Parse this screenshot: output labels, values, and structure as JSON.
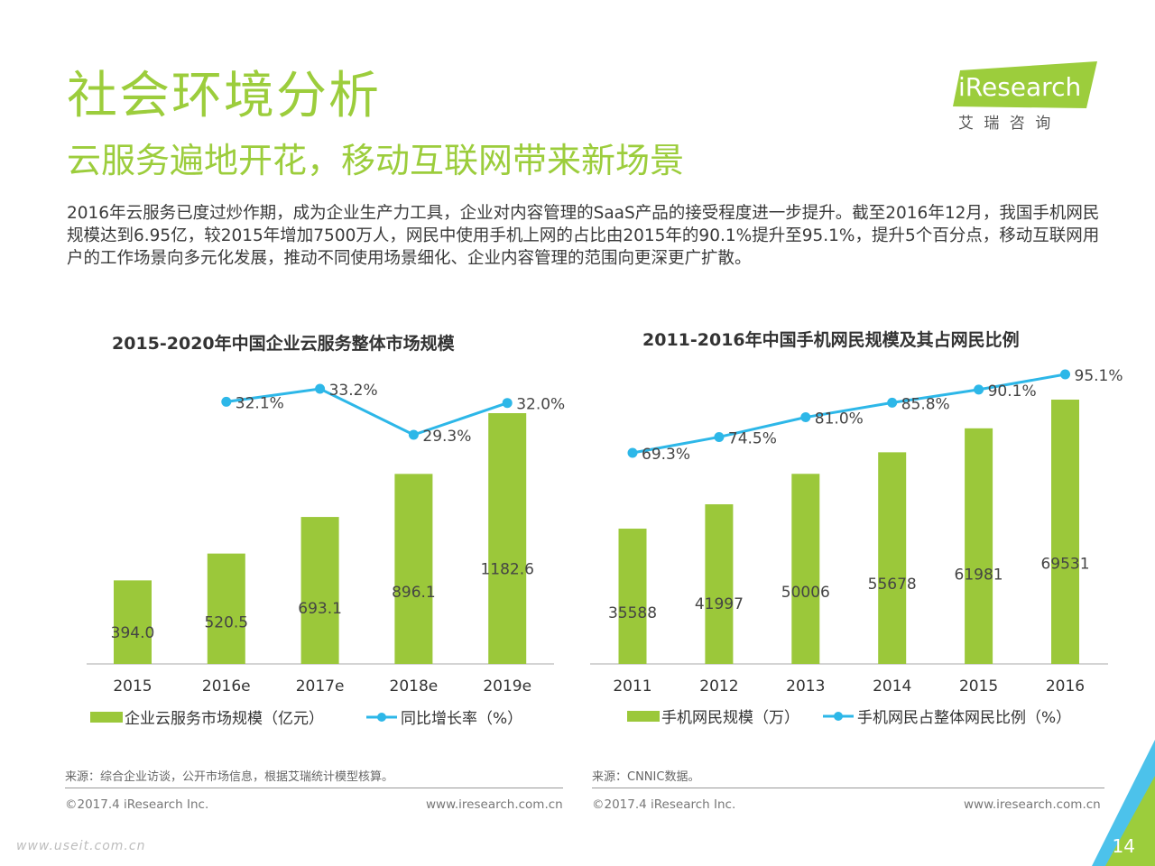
{
  "header": {
    "title": "社会环境分析",
    "subtitle": "云服务遍地开花，移动互联网带来新场景",
    "intro": "2016年云服务已度过炒作期，成为企业生产力工具，企业对内容管理的SaaS产品的接受程度进一步提升。截至2016年12月，我国手机网民规模达到6.95亿，较2015年增加7500万人，网民中使用手机上网的占比由2015年的90.1%提升至95.1%，提升5个百分点，移动互联网用户的工作场景向多元化发展，推动不同使用场景细化、企业内容管理的范围向更深更广扩散。"
  },
  "logo": {
    "brand": "iResearch",
    "tagline": "艾 瑞 咨 询"
  },
  "colors": {
    "green": "#9ccd3c",
    "bar": "#9bc83a",
    "line": "#2db7e8"
  },
  "chart_data": [
    {
      "type": "bar",
      "title": "2015-2020年中国企业云服务整体市场规模",
      "categories": [
        "2015",
        "2016e",
        "2017e",
        "2018e",
        "2019e"
      ],
      "series": [
        {
          "name": "企业云服务市场规模（亿元）",
          "type": "bar",
          "values": [
            394.0,
            520.5,
            693.1,
            896.1,
            1182.6
          ],
          "labels": [
            "394.0",
            "520.5",
            "693.1",
            "896.1",
            "1182.6"
          ]
        },
        {
          "name": "同比增长率（%）",
          "type": "line",
          "values": [
            null,
            32.1,
            33.2,
            29.3,
            32.0
          ],
          "labels": [
            "",
            "32.1%",
            "33.2%",
            "29.3%",
            "32.0%"
          ]
        }
      ]
    },
    {
      "type": "bar",
      "title": "2011-2016年中国手机网民规模及其占网民比例",
      "categories": [
        "2011",
        "2012",
        "2013",
        "2014",
        "2015",
        "2016"
      ],
      "series": [
        {
          "name": "手机网民规模（万）",
          "type": "bar",
          "values": [
            35588,
            41997,
            50006,
            55678,
            61981,
            69531
          ],
          "labels": [
            "35588",
            "41997",
            "50006",
            "55678",
            "61981",
            "69531"
          ]
        },
        {
          "name": "手机网民占整体网民比例（%）",
          "type": "line",
          "values": [
            69.3,
            74.5,
            81.0,
            85.8,
            90.1,
            95.1
          ],
          "labels": [
            "69.3%",
            "74.5%",
            "81.0%",
            "85.8%",
            "90.1%",
            "95.1%"
          ]
        }
      ]
    }
  ],
  "footer": {
    "source1": "来源：综合企业访谈，公开市场信息，根据艾瑞统计模型核算。",
    "source2": "来源：CNNIC数据。",
    "copyright1": "©2017.4 iResearch Inc.",
    "url1": "www.iresearch.com.cn",
    "copyright2": "©2017.4 iResearch Inc.",
    "url2": "www.iresearch.com.cn",
    "page": "14",
    "watermark": "www.useit.com.cn"
  }
}
